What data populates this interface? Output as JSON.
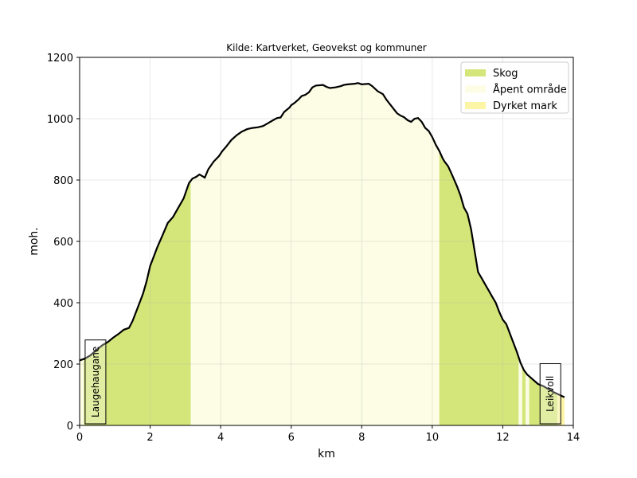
{
  "chart_data": {
    "type": "area",
    "title": "Kilde: Kartverket, Geovekst og kommuner",
    "xlabel": "km",
    "ylabel": "moh.",
    "xlim": [
      0,
      14
    ],
    "ylim": [
      0,
      1200
    ],
    "xticks": [
      "0",
      "2",
      "4",
      "6",
      "8",
      "10",
      "12",
      "14"
    ],
    "yticks": [
      "0",
      "200",
      "400",
      "600",
      "800",
      "1000",
      "1200"
    ],
    "grid": true,
    "legend_position": "top-right",
    "legend": [
      {
        "label": "Skog",
        "color": "#d4e67a"
      },
      {
        "label": "Åpent område",
        "color": "#fcfde4"
      },
      {
        "label": "Dyrket mark",
        "color": "#fdf5a6"
      }
    ],
    "profile": {
      "x": [
        0,
        0.15,
        0.3,
        0.5,
        0.65,
        0.8,
        0.95,
        1.1,
        1.25,
        1.4,
        1.5,
        1.6,
        1.7,
        1.8,
        1.9,
        2.0,
        2.1,
        2.2,
        2.35,
        2.5,
        2.65,
        2.8,
        2.95,
        3.1,
        3.2,
        3.3,
        3.4,
        3.55,
        3.65,
        3.8,
        3.95,
        4.05,
        4.15,
        4.3,
        4.45,
        4.6,
        4.75,
        4.9,
        5.05,
        5.2,
        5.35,
        5.5,
        5.6,
        5.7,
        5.8,
        5.95,
        6.0,
        6.1,
        6.2,
        6.3,
        6.4,
        6.5,
        6.6,
        6.7,
        6.9,
        7.0,
        7.1,
        7.25,
        7.4,
        7.5,
        7.6,
        7.8,
        7.9,
        8.0,
        8.2,
        8.3,
        8.45,
        8.6,
        8.7,
        8.85,
        9.0,
        9.1,
        9.2,
        9.3,
        9.4,
        9.5,
        9.6,
        9.7,
        9.8,
        9.9,
        10.0,
        10.1,
        10.2,
        10.3,
        10.35,
        10.45,
        10.55,
        10.7,
        10.8,
        10.9,
        11.0,
        11.1,
        11.2,
        11.3,
        11.4,
        11.5,
        11.6,
        11.7,
        11.8,
        11.9,
        12.0,
        12.1,
        12.2,
        12.3,
        12.4,
        12.5,
        12.6,
        12.7,
        12.8,
        12.9,
        13.0,
        13.15,
        13.3,
        13.45,
        13.6,
        13.75
      ],
      "y": [
        212,
        218,
        228,
        248,
        262,
        272,
        286,
        298,
        312,
        318,
        340,
        370,
        400,
        430,
        470,
        520,
        550,
        580,
        620,
        660,
        680,
        710,
        740,
        790,
        805,
        810,
        818,
        808,
        835,
        860,
        878,
        895,
        908,
        930,
        946,
        958,
        966,
        970,
        972,
        976,
        986,
        996,
        1002,
        1004,
        1022,
        1036,
        1044,
        1052,
        1062,
        1074,
        1078,
        1086,
        1102,
        1108,
        1110,
        1104,
        1100,
        1102,
        1106,
        1110,
        1112,
        1114,
        1116,
        1112,
        1114,
        1106,
        1090,
        1080,
        1062,
        1040,
        1018,
        1010,
        1005,
        995,
        990,
        1000,
        1002,
        990,
        970,
        960,
        940,
        915,
        895,
        870,
        860,
        845,
        820,
        780,
        750,
        710,
        690,
        640,
        570,
        500,
        480,
        460,
        440,
        420,
        400,
        370,
        345,
        330,
        300,
        270,
        240,
        205,
        180,
        165,
        155,
        145,
        135,
        128,
        118,
        108,
        100,
        92
      ]
    },
    "land_cover": [
      {
        "type": "Åpent område",
        "x": [
          0.0,
          0.12
        ]
      },
      {
        "type": "Skog",
        "x": [
          0.12,
          3.15
        ]
      },
      {
        "type": "Åpent område",
        "x": [
          3.15,
          10.2
        ]
      },
      {
        "type": "Skog",
        "x": [
          10.2,
          12.45
        ]
      },
      {
        "type": "Åpent område",
        "x": [
          12.45,
          12.55
        ]
      },
      {
        "type": "Skog",
        "x": [
          12.55,
          12.65
        ]
      },
      {
        "type": "Åpent område",
        "x": [
          12.65,
          12.75
        ]
      },
      {
        "type": "Skog",
        "x": [
          12.75,
          13.55
        ]
      },
      {
        "type": "Dyrket mark",
        "x": [
          13.55,
          13.75
        ]
      }
    ],
    "annotations": [
      {
        "text": "Laugehaugane",
        "x": 0.45
      },
      {
        "text": "Leikvoll",
        "x": 13.35
      }
    ]
  }
}
